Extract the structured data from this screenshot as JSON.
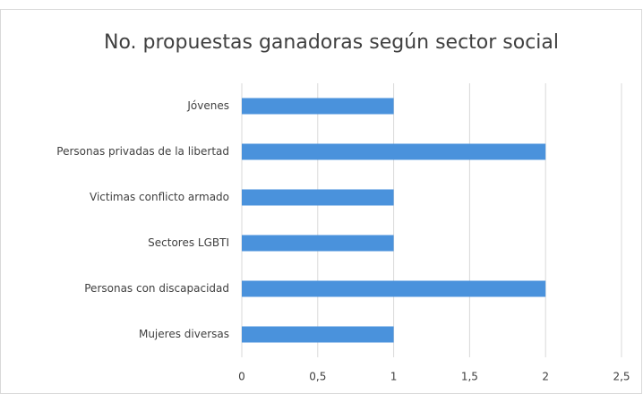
{
  "chart_data": {
    "type": "bar",
    "orientation": "horizontal",
    "title": "No. propuestas ganadoras según sector social",
    "categories": [
      "Jóvenes",
      "Personas privadas de la libertad",
      "Victimas conflicto armado",
      "Sectores LGBTI",
      "Personas con discapacidad",
      "Mujeres diversas"
    ],
    "values": [
      1,
      2,
      1,
      1,
      2,
      1
    ],
    "color": "#4a92dc",
    "xlim": [
      0,
      2.5
    ],
    "xticks": [
      0,
      {
        "value": 0.5,
        "label": "0,5"
      },
      1,
      {
        "value": 1.5,
        "label": "1,5"
      },
      2,
      {
        "value": 2.5,
        "label": "2,5"
      }
    ],
    "grid": true
  }
}
